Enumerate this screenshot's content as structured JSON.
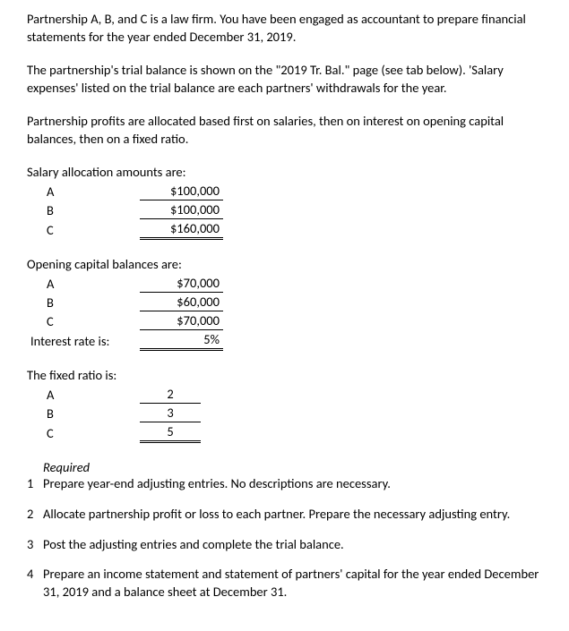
{
  "intro": {
    "p1": "Partnership A, B, and C is a law firm. You have been engaged as accountant to prepare financial statements for the year ended December 31, 2019.",
    "p2": "The partnership's trial balance is shown on the \"2019 Tr. Bal.\" page (see tab below). 'Salary expenses' listed on the trial balance are each partners' withdrawals for the year.",
    "p3": "Partnership profits are allocated based first on salaries, then on interest on opening capital balances, then on a fixed ratio."
  },
  "salary": {
    "label": "Salary allocation amounts are:",
    "rows": [
      {
        "name": "A",
        "value": "$100,000"
      },
      {
        "name": "B",
        "value": "$100,000"
      },
      {
        "name": "C",
        "value": "$160,000"
      }
    ]
  },
  "capital": {
    "label": "Opening capital balances are:",
    "rows": [
      {
        "name": "A",
        "value": "$70,000"
      },
      {
        "name": "B",
        "value": "$60,000"
      },
      {
        "name": "C",
        "value": "$70,000"
      }
    ],
    "interest_label": "Interest rate is:",
    "interest_value": "5%"
  },
  "ratio": {
    "label": "The fixed ratio is:",
    "rows": [
      {
        "name": "A",
        "value": "2"
      },
      {
        "name": "B",
        "value": "3"
      },
      {
        "name": "C",
        "value": "5"
      }
    ]
  },
  "required": {
    "heading": "Required",
    "items": [
      "Prepare year-end adjusting entries. No descriptions are necessary.",
      "Allocate partnership profit or loss to each partner. Prepare the necessary adjusting entry.",
      "Post the adjusting entries and complete the trial balance.",
      "Prepare an income statement and statement of partners' capital for the year ended December 31, 2019 and a balance sheet at December 31."
    ]
  }
}
